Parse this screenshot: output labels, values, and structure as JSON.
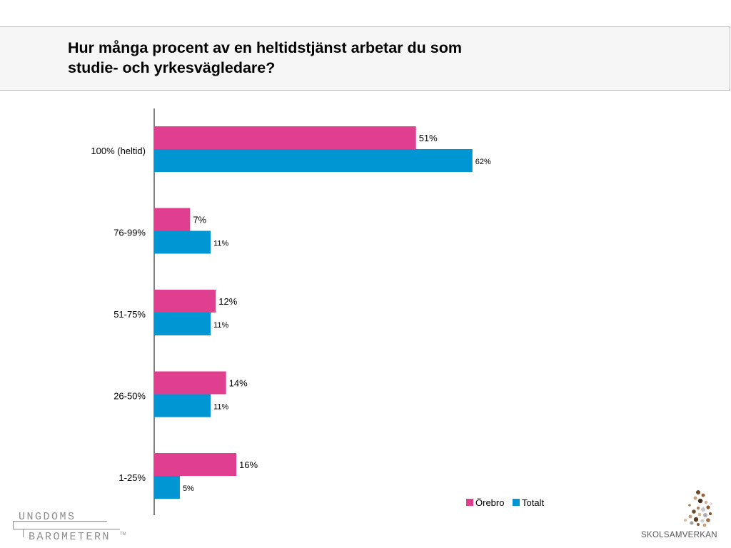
{
  "header": {
    "title_line1": "Hur många procent av en heltidstjänst arbetar du som",
    "title_line2": "studie- och yrkesvägledare?"
  },
  "chart_data": {
    "type": "bar",
    "orientation": "horizontal",
    "categories": [
      "100% (heltid)",
      "76-99%",
      "51-75%",
      "26-50%",
      "1-25%"
    ],
    "series": [
      {
        "name": "Örebro",
        "color": "#e03f8f",
        "values": [
          51,
          7,
          12,
          14,
          16
        ],
        "labels": [
          "51%",
          "7%",
          "12%",
          "14%",
          "16%"
        ]
      },
      {
        "name": "Totalt",
        "color": "#0096d4",
        "values": [
          62,
          11,
          11,
          11,
          5
        ],
        "labels": [
          "62%",
          "11%",
          "11%",
          "11%",
          "5%"
        ]
      }
    ],
    "xlim": [
      0,
      100
    ],
    "grid": false,
    "legend": "bottom-right"
  },
  "logos": {
    "left_line1": "UNGDOMS",
    "left_line2": "BAROMETERN",
    "left_tm": "TM",
    "right_text": "SKOLSAMVERKAN",
    "right_icon": "skolsamverkan-figure-icon"
  }
}
